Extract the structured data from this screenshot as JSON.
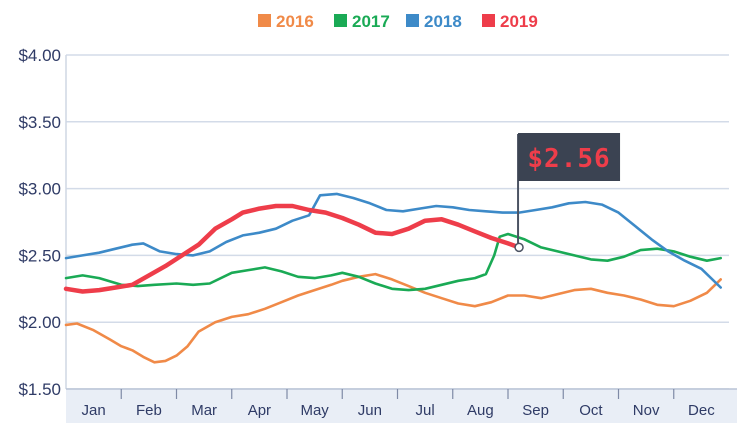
{
  "chart_data": {
    "type": "line",
    "title": "",
    "xlabel": "",
    "ylabel": "",
    "ylim": [
      1.5,
      4.0
    ],
    "xlim": [
      0,
      12
    ],
    "y_ticks": [
      "$1.50",
      "$2.00",
      "$2.50",
      "$3.00",
      "$3.50",
      "$4.00"
    ],
    "y_tick_values": [
      1.5,
      2.0,
      2.5,
      3.0,
      3.5,
      4.0
    ],
    "categories": [
      "Jan",
      "Feb",
      "Mar",
      "Apr",
      "May",
      "Jun",
      "Jul",
      "Aug",
      "Sep",
      "Oct",
      "Nov",
      "Dec"
    ],
    "grid": true,
    "legend_position": "top-center",
    "series": [
      {
        "name": "2016",
        "color": "#f08a48",
        "x": [
          0,
          0.2,
          0.5,
          0.8,
          1.0,
          1.2,
          1.4,
          1.6,
          1.8,
          2.0,
          2.2,
          2.4,
          2.7,
          3.0,
          3.3,
          3.6,
          3.9,
          4.2,
          4.5,
          4.8,
          5.0,
          5.3,
          5.6,
          5.9,
          6.2,
          6.5,
          6.8,
          7.1,
          7.4,
          7.7,
          8.0,
          8.3,
          8.6,
          8.9,
          9.2,
          9.5,
          9.8,
          10.1,
          10.4,
          10.7,
          11.0,
          11.3,
          11.6,
          11.85
        ],
        "values": [
          1.98,
          1.99,
          1.94,
          1.87,
          1.82,
          1.79,
          1.74,
          1.7,
          1.71,
          1.75,
          1.82,
          1.93,
          2.0,
          2.04,
          2.06,
          2.1,
          2.15,
          2.2,
          2.24,
          2.28,
          2.31,
          2.34,
          2.36,
          2.32,
          2.27,
          2.22,
          2.18,
          2.14,
          2.12,
          2.15,
          2.2,
          2.2,
          2.18,
          2.21,
          2.24,
          2.25,
          2.22,
          2.2,
          2.17,
          2.13,
          2.12,
          2.16,
          2.22,
          2.32
        ]
      },
      {
        "name": "2017",
        "color": "#1aaa55",
        "x": [
          0,
          0.3,
          0.6,
          1.0,
          1.3,
          1.6,
          2.0,
          2.3,
          2.6,
          3.0,
          3.3,
          3.6,
          3.9,
          4.2,
          4.5,
          4.8,
          5.0,
          5.3,
          5.6,
          5.9,
          6.2,
          6.5,
          6.8,
          7.1,
          7.4,
          7.6,
          7.75,
          7.85,
          8.0,
          8.3,
          8.6,
          8.9,
          9.2,
          9.5,
          9.8,
          10.1,
          10.4,
          10.7,
          11.0,
          11.3,
          11.6,
          11.85
        ],
        "values": [
          2.33,
          2.35,
          2.33,
          2.28,
          2.27,
          2.28,
          2.29,
          2.28,
          2.29,
          2.37,
          2.39,
          2.41,
          2.38,
          2.34,
          2.33,
          2.35,
          2.37,
          2.34,
          2.29,
          2.25,
          2.24,
          2.25,
          2.28,
          2.31,
          2.33,
          2.36,
          2.5,
          2.64,
          2.66,
          2.62,
          2.56,
          2.53,
          2.5,
          2.47,
          2.46,
          2.49,
          2.54,
          2.55,
          2.53,
          2.49,
          2.46,
          2.48
        ]
      },
      {
        "name": "2018",
        "color": "#3d8ac8",
        "x": [
          0,
          0.3,
          0.6,
          0.9,
          1.2,
          1.4,
          1.7,
          2.0,
          2.3,
          2.6,
          2.9,
          3.2,
          3.5,
          3.8,
          4.1,
          4.4,
          4.6,
          4.9,
          5.2,
          5.5,
          5.8,
          6.1,
          6.4,
          6.7,
          7.0,
          7.3,
          7.6,
          7.9,
          8.2,
          8.5,
          8.8,
          9.1,
          9.4,
          9.7,
          10.0,
          10.3,
          10.6,
          10.9,
          11.2,
          11.5,
          11.85
        ],
        "values": [
          2.48,
          2.5,
          2.52,
          2.55,
          2.58,
          2.59,
          2.53,
          2.51,
          2.5,
          2.53,
          2.6,
          2.65,
          2.67,
          2.7,
          2.76,
          2.8,
          2.95,
          2.96,
          2.93,
          2.89,
          2.84,
          2.83,
          2.85,
          2.87,
          2.86,
          2.84,
          2.83,
          2.82,
          2.82,
          2.84,
          2.86,
          2.89,
          2.9,
          2.88,
          2.82,
          2.72,
          2.62,
          2.53,
          2.46,
          2.4,
          2.26
        ]
      },
      {
        "name": "2019",
        "color": "#ee3d4a",
        "x": [
          0,
          0.3,
          0.6,
          0.9,
          1.2,
          1.5,
          1.8,
          2.1,
          2.4,
          2.7,
          3.0,
          3.2,
          3.5,
          3.8,
          4.1,
          4.4,
          4.7,
          5.0,
          5.3,
          5.6,
          5.9,
          6.2,
          6.5,
          6.8,
          7.1,
          7.4,
          7.7,
          8.0,
          8.2
        ],
        "values": [
          2.25,
          2.23,
          2.24,
          2.26,
          2.28,
          2.35,
          2.42,
          2.5,
          2.58,
          2.7,
          2.77,
          2.82,
          2.85,
          2.87,
          2.87,
          2.84,
          2.82,
          2.78,
          2.73,
          2.67,
          2.66,
          2.7,
          2.76,
          2.77,
          2.73,
          2.68,
          2.63,
          2.59,
          2.56
        ]
      }
    ],
    "annotation": {
      "label": "$2.56",
      "x": 8.2,
      "y": 2.56,
      "series": "2019"
    }
  }
}
